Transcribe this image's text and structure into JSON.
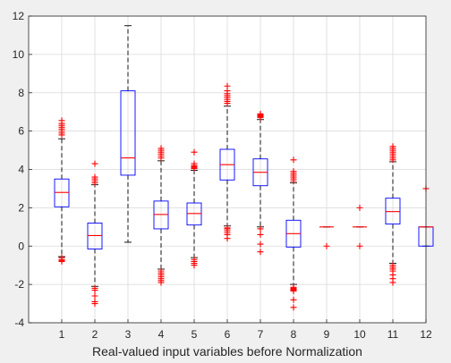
{
  "chart_data": {
    "type": "boxplot",
    "xlabel": "Real-valued input variables before Normalization",
    "ylabel": "",
    "title": "",
    "categories": [
      "1",
      "2",
      "3",
      "4",
      "5",
      "6",
      "7",
      "8",
      "9",
      "10",
      "11",
      "12"
    ],
    "yticks": [
      -4,
      -2,
      0,
      2,
      4,
      6,
      8,
      10,
      12
    ],
    "ylim": [
      -4,
      12
    ],
    "xlim": [
      0,
      12
    ],
    "grid": true,
    "colors": {
      "box": "#0000ff",
      "median": "#ff0000",
      "whisker": "#000000",
      "outlier": "#ff0000",
      "grid": "#d9d9d9",
      "axes_bg": "#ffffff",
      "figure_bg": "#f0f0f0"
    },
    "boxes": [
      {
        "label": "1",
        "q1": 2.05,
        "median": 2.8,
        "q3": 3.5,
        "whisker_low": -0.55,
        "whisker_high": 5.6,
        "outliers": [
          -0.6,
          -0.7,
          -0.75,
          -0.8,
          5.8,
          5.9,
          6.0,
          6.1,
          6.2,
          6.3,
          6.4,
          6.55
        ]
      },
      {
        "label": "2",
        "q1": -0.15,
        "median": 0.55,
        "q3": 1.2,
        "whisker_low": -2.1,
        "whisker_high": 3.2,
        "outliers": [
          -2.2,
          -2.3,
          -2.6,
          -2.9,
          -3.0,
          3.3,
          3.4,
          3.5,
          3.6,
          4.3
        ]
      },
      {
        "label": "3",
        "q1": 3.7,
        "median": 4.6,
        "q3": 8.1,
        "whisker_low": 0.2,
        "whisker_high": 11.5,
        "outliers": []
      },
      {
        "label": "4",
        "q1": 0.9,
        "median": 1.65,
        "q3": 2.35,
        "whisker_low": -1.2,
        "whisker_high": 4.45,
        "outliers": [
          -1.3,
          -1.4,
          -1.5,
          -1.6,
          -1.7,
          -1.8,
          -1.9,
          4.6,
          4.7,
          4.8,
          4.9,
          5.0,
          5.1
        ]
      },
      {
        "label": "5",
        "q1": 1.1,
        "median": 1.7,
        "q3": 2.25,
        "whisker_low": -0.6,
        "whisker_high": 3.95,
        "outliers": [
          -0.7,
          -0.8,
          -0.9,
          -1.0,
          4.05,
          4.1,
          4.15,
          4.2,
          4.3,
          4.9
        ]
      },
      {
        "label": "6",
        "q1": 3.45,
        "median": 4.25,
        "q3": 5.05,
        "whisker_low": 1.05,
        "whisker_high": 7.3,
        "outliers": [
          0.4,
          0.6,
          0.7,
          0.8,
          0.9,
          0.95,
          7.45,
          7.55,
          7.65,
          7.75,
          7.85,
          7.95,
          8.1,
          8.35
        ]
      },
      {
        "label": "7",
        "q1": 3.15,
        "median": 3.85,
        "q3": 4.55,
        "whisker_low": 1.0,
        "whisker_high": 6.6,
        "outliers": [
          -0.3,
          0.1,
          0.6,
          0.9,
          6.7,
          6.75,
          6.8,
          6.85,
          6.9
        ]
      },
      {
        "label": "8",
        "q1": -0.05,
        "median": 0.65,
        "q3": 1.35,
        "whisker_low": -2.0,
        "whisker_high": 3.3,
        "outliers": [
          -2.15,
          -2.2,
          -2.25,
          -2.3,
          -2.35,
          -2.8,
          -3.2,
          3.4,
          3.5,
          3.6,
          3.7,
          3.8,
          3.9,
          4.5
        ]
      },
      {
        "label": "9",
        "q1": 1.0,
        "median": 1.0,
        "q3": 1.0,
        "whisker_low": 1.0,
        "whisker_high": 1.0,
        "outliers": [
          0.0
        ]
      },
      {
        "label": "10",
        "q1": 1.0,
        "median": 1.0,
        "q3": 1.0,
        "whisker_low": 1.0,
        "whisker_high": 1.0,
        "outliers": [
          0.0,
          2.0
        ]
      },
      {
        "label": "11",
        "q1": 1.15,
        "median": 1.8,
        "q3": 2.5,
        "whisker_low": -0.9,
        "whisker_high": 4.4,
        "outliers": [
          -1.0,
          -1.1,
          -1.2,
          -1.3,
          -1.5,
          -1.7,
          -1.9,
          4.5,
          4.6,
          4.7,
          4.8,
          4.9,
          5.0,
          5.1,
          5.2
        ]
      },
      {
        "label": "12",
        "q1": 0.0,
        "median": 1.0,
        "q3": 1.0,
        "whisker_low": 0.0,
        "whisker_high": 1.0,
        "outliers": [
          3.0
        ]
      }
    ]
  }
}
